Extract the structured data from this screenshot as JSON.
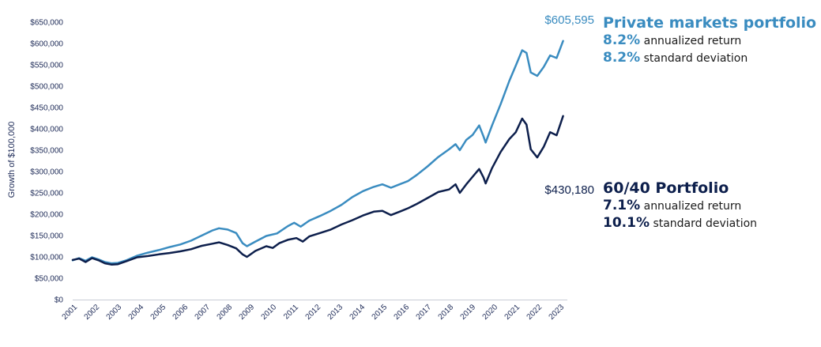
{
  "chart_data": {
    "type": "line",
    "ylabel": "Growth of $100,000",
    "xlabel": "",
    "ylim": [
      0,
      650000
    ],
    "y_ticks": [
      0,
      50000,
      100000,
      150000,
      200000,
      250000,
      300000,
      350000,
      400000,
      450000,
      500000,
      550000,
      600000,
      650000
    ],
    "y_tick_labels": [
      "$0",
      "$50,000",
      "$100,000",
      "$150,000",
      "$200,000",
      "$250,000",
      "$300,000",
      "$350,000",
      "$400,000",
      "$450,000",
      "$500,000",
      "$550,000",
      "$600,000",
      "$650,000"
    ],
    "x_tick_labels": [
      "2001",
      "2002",
      "2003",
      "2004",
      "2005",
      "2006",
      "2007",
      "2008",
      "2009",
      "2010",
      "2011",
      "2012",
      "2013",
      "2014",
      "2015",
      "2016",
      "2017",
      "2018",
      "2019",
      "2020",
      "2021",
      "2022",
      "2023"
    ],
    "xlim": [
      2001,
      2024
    ],
    "grid": false,
    "series": [
      {
        "name": "Private markets portfolio",
        "color": "#3a8cc0",
        "end_label": "$605,595",
        "stat_return": "8.2%",
        "stat_return_text": "annualized return",
        "stat_sd": "8.2%",
        "stat_sd_text": "standard deviation",
        "points": [
          [
            2001.0,
            92000
          ],
          [
            2001.3,
            97000
          ],
          [
            2001.6,
            91000
          ],
          [
            2001.9,
            99000
          ],
          [
            2002.2,
            94000
          ],
          [
            2002.5,
            88000
          ],
          [
            2002.8,
            85000
          ],
          [
            2003.1,
            86000
          ],
          [
            2003.5,
            92000
          ],
          [
            2004.0,
            103000
          ],
          [
            2004.5,
            110000
          ],
          [
            2005.0,
            116000
          ],
          [
            2005.5,
            123000
          ],
          [
            2006.0,
            129000
          ],
          [
            2006.5,
            138000
          ],
          [
            2007.0,
            150000
          ],
          [
            2007.5,
            162000
          ],
          [
            2007.8,
            167000
          ],
          [
            2008.2,
            164000
          ],
          [
            2008.6,
            156000
          ],
          [
            2008.9,
            132000
          ],
          [
            2009.1,
            125000
          ],
          [
            2009.5,
            136000
          ],
          [
            2010.0,
            149000
          ],
          [
            2010.5,
            155000
          ],
          [
            2011.0,
            172000
          ],
          [
            2011.3,
            180000
          ],
          [
            2011.6,
            171000
          ],
          [
            2012.0,
            185000
          ],
          [
            2012.5,
            196000
          ],
          [
            2013.0,
            208000
          ],
          [
            2013.5,
            222000
          ],
          [
            2014.0,
            240000
          ],
          [
            2014.5,
            254000
          ],
          [
            2015.0,
            264000
          ],
          [
            2015.4,
            270000
          ],
          [
            2015.8,
            262000
          ],
          [
            2016.2,
            270000
          ],
          [
            2016.6,
            278000
          ],
          [
            2017.0,
            292000
          ],
          [
            2017.5,
            312000
          ],
          [
            2018.0,
            334000
          ],
          [
            2018.5,
            352000
          ],
          [
            2018.8,
            364000
          ],
          [
            2019.0,
            350000
          ],
          [
            2019.3,
            374000
          ],
          [
            2019.6,
            386000
          ],
          [
            2019.9,
            408000
          ],
          [
            2020.1,
            382000
          ],
          [
            2020.2,
            368000
          ],
          [
            2020.5,
            408000
          ],
          [
            2020.9,
            458000
          ],
          [
            2021.3,
            512000
          ],
          [
            2021.6,
            548000
          ],
          [
            2021.9,
            584000
          ],
          [
            2022.1,
            578000
          ],
          [
            2022.3,
            532000
          ],
          [
            2022.6,
            524000
          ],
          [
            2022.9,
            545000
          ],
          [
            2023.2,
            572000
          ],
          [
            2023.5,
            566000
          ],
          [
            2023.8,
            606000
          ]
        ]
      },
      {
        "name": "60/40 Portfolio",
        "color": "#0d1f4c",
        "end_label": "$430,180",
        "stat_return": "7.1%",
        "stat_return_text": "annualized return",
        "stat_sd": "10.1%",
        "stat_sd_text": "standard deviation",
        "points": [
          [
            2001.0,
            93000
          ],
          [
            2001.3,
            96000
          ],
          [
            2001.6,
            88000
          ],
          [
            2001.9,
            97000
          ],
          [
            2002.2,
            92000
          ],
          [
            2002.5,
            85000
          ],
          [
            2002.8,
            82000
          ],
          [
            2003.1,
            83000
          ],
          [
            2003.5,
            90000
          ],
          [
            2004.0,
            99000
          ],
          [
            2004.5,
            102000
          ],
          [
            2005.0,
            106000
          ],
          [
            2005.5,
            109000
          ],
          [
            2006.0,
            113000
          ],
          [
            2006.5,
            118000
          ],
          [
            2007.0,
            126000
          ],
          [
            2007.5,
            131000
          ],
          [
            2007.8,
            134000
          ],
          [
            2008.2,
            128000
          ],
          [
            2008.6,
            120000
          ],
          [
            2008.9,
            106000
          ],
          [
            2009.1,
            100000
          ],
          [
            2009.5,
            114000
          ],
          [
            2010.0,
            125000
          ],
          [
            2010.3,
            121000
          ],
          [
            2010.6,
            132000
          ],
          [
            2011.0,
            140000
          ],
          [
            2011.4,
            144000
          ],
          [
            2011.7,
            136000
          ],
          [
            2012.0,
            148000
          ],
          [
            2012.5,
            156000
          ],
          [
            2013.0,
            164000
          ],
          [
            2013.5,
            176000
          ],
          [
            2014.0,
            186000
          ],
          [
            2014.5,
            197000
          ],
          [
            2015.0,
            206000
          ],
          [
            2015.4,
            208000
          ],
          [
            2015.8,
            198000
          ],
          [
            2016.2,
            206000
          ],
          [
            2016.6,
            214000
          ],
          [
            2017.0,
            224000
          ],
          [
            2017.5,
            238000
          ],
          [
            2018.0,
            252000
          ],
          [
            2018.5,
            258000
          ],
          [
            2018.8,
            270000
          ],
          [
            2019.0,
            250000
          ],
          [
            2019.3,
            270000
          ],
          [
            2019.6,
            288000
          ],
          [
            2019.9,
            306000
          ],
          [
            2020.1,
            286000
          ],
          [
            2020.2,
            272000
          ],
          [
            2020.5,
            308000
          ],
          [
            2020.9,
            346000
          ],
          [
            2021.3,
            376000
          ],
          [
            2021.6,
            392000
          ],
          [
            2021.9,
            424000
          ],
          [
            2022.1,
            410000
          ],
          [
            2022.3,
            352000
          ],
          [
            2022.6,
            333000
          ],
          [
            2022.9,
            358000
          ],
          [
            2023.2,
            392000
          ],
          [
            2023.5,
            385000
          ],
          [
            2023.8,
            430000
          ]
        ]
      }
    ]
  }
}
